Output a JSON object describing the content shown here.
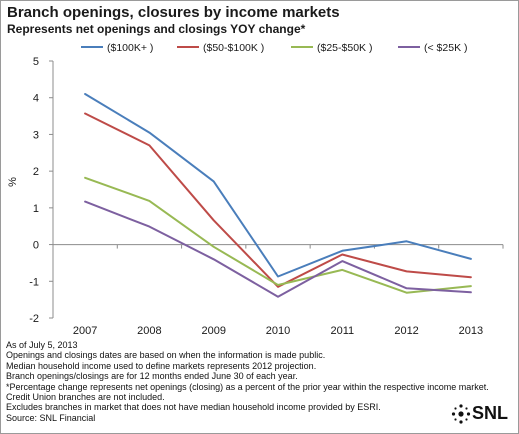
{
  "title": "Branch openings, closures by income markets",
  "subtitle": "Represents net openings and closings YOY change*",
  "chart_data": {
    "type": "line",
    "categories": [
      "2007",
      "2008",
      "2009",
      "2010",
      "2011",
      "2012",
      "2013"
    ],
    "ylabel": "%",
    "ylim": [
      -2,
      5
    ],
    "yticks": [
      -2,
      -1,
      0,
      1,
      2,
      3,
      4,
      5
    ],
    "legend_position": "top",
    "grid": false,
    "series": [
      {
        "name": "($100K+ )",
        "color": "#4a7ebb",
        "values": [
          4.1,
          3.05,
          1.72,
          -0.87,
          -0.17,
          0.09,
          -0.39
        ]
      },
      {
        "name": "($50-$100K )",
        "color": "#be4b48",
        "values": [
          3.57,
          2.7,
          0.66,
          -1.15,
          -0.27,
          -0.73,
          -0.89
        ]
      },
      {
        "name": "($25-$50K )",
        "color": "#98b954",
        "values": [
          1.82,
          1.19,
          -0.06,
          -1.1,
          -0.69,
          -1.31,
          -1.13
        ]
      },
      {
        "name": "(< $25K )",
        "color": "#7d60a0",
        "values": [
          1.17,
          0.49,
          -0.4,
          -1.42,
          -0.45,
          -1.19,
          -1.3
        ]
      }
    ]
  },
  "notes": [
    "As of July 5, 2013",
    "Openings and closings dates are based on when the information is made public.",
    "Median household income used to define markets represents 2012 projection.",
    "Branch openings/closings are for 12 months ended June 30 of each year.",
    "*Percentage change represents net openings (closing) as a percent of the prior year within the respective income market.",
    "Credit Union branches are not included.",
    "Excludes branches in market that does not have median household income provided by ESRI.",
    "Source: SNL Financial"
  ],
  "logo": {
    "text": "SNL",
    "icon": "snl-sparkle-icon"
  }
}
